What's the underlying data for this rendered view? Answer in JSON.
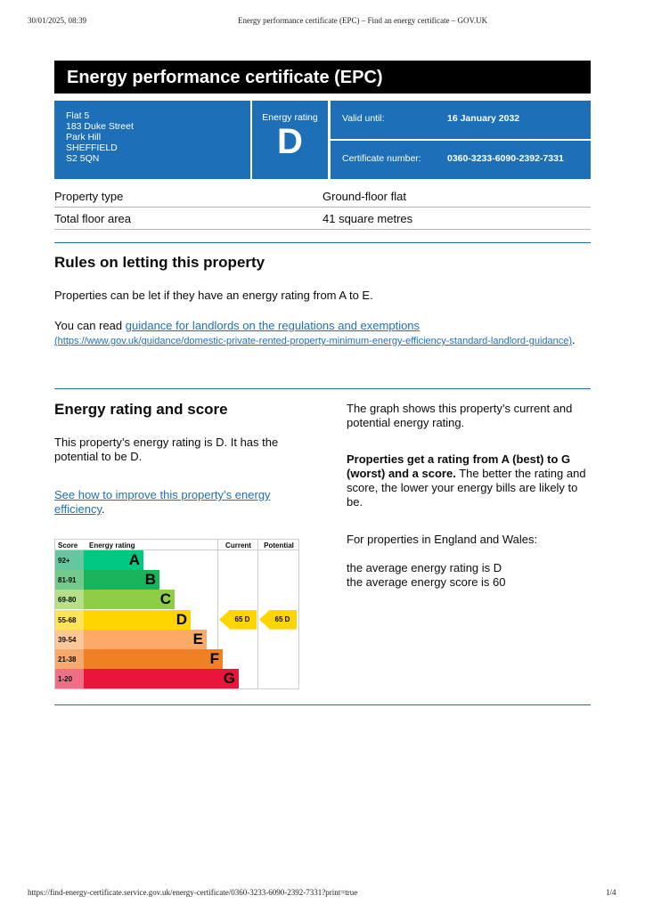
{
  "browser": {
    "datetime": "30/01/2025, 08:39",
    "page_title": "Energy performance certificate (EPC) – Find an energy certificate – GOV.UK",
    "url": "https://find-energy-certificate.service.gov.uk/energy-certificate/0360-3233-6090-2392-7331?print=true",
    "page_num": "1/4"
  },
  "title": "Energy performance certificate (EPC)",
  "address": [
    "Flat 5",
    "183 Duke Street",
    "Park Hill",
    "SHEFFIELD",
    "S2 5QN"
  ],
  "rating": {
    "label": "Energy rating",
    "value": "D"
  },
  "valid": {
    "label": "Valid until:",
    "value": "16 January 2032"
  },
  "cert": {
    "label": "Certificate number:",
    "value": "0360-3233-6090-2392-7331"
  },
  "property": [
    {
      "k": "Property type",
      "v": "Ground-floor flat"
    },
    {
      "k": "Total floor area",
      "v": "41 square metres"
    }
  ],
  "rules": {
    "heading": "Rules on letting this property",
    "p1": "Properties can be let if they have an energy rating from A to E.",
    "p2_pre": "You can read ",
    "p2_link": "guidance for landlords on the regulations and exemptions",
    "p2_url": "(https://www.gov.uk/guidance/domestic-private-rented-property-minimum-energy-efficiency-standard-landlord-guidance)",
    "p2_post": "."
  },
  "score_section": {
    "heading": "Energy rating and score",
    "p1": "This property’s energy rating is D. It has the potential to be D.",
    "link": "See how to improve this property’s energy efficiency",
    "link_post": ".",
    "r1": "The graph shows this property’s current and potential energy rating.",
    "r2_bold": "Properties get a rating from A (best) to G (worst) and a score.",
    "r2_rest": " The better the rating and score, the lower your energy bills are likely to be.",
    "r3": "For properties in England and Wales:",
    "r4": "the average energy rating is D",
    "r5": "the average energy score is 60"
  },
  "chart": {
    "headers": [
      "Score",
      "Energy rating",
      "Current",
      "Potential"
    ],
    "bands": [
      {
        "score": "92+",
        "letter": "A",
        "color": "#00c781",
        "tint": "#64c7a0"
      },
      {
        "score": "81-91",
        "letter": "B",
        "color": "#19b459",
        "tint": "#72c98c"
      },
      {
        "score": "69-80",
        "letter": "C",
        "color": "#8dce46",
        "tint": "#b6df8a"
      },
      {
        "score": "55-68",
        "letter": "D",
        "color": "#ffd500",
        "tint": "#ffe458"
      },
      {
        "score": "39-54",
        "letter": "E",
        "color": "#fcaa65",
        "tint": "#fdc79a"
      },
      {
        "score": "21-38",
        "letter": "F",
        "color": "#ef8023",
        "tint": "#f4aa6c"
      },
      {
        "score": "1-20",
        "letter": "G",
        "color": "#e9153b",
        "tint": "#ef6f86"
      }
    ],
    "current": "65  D",
    "potential": "65  D"
  }
}
